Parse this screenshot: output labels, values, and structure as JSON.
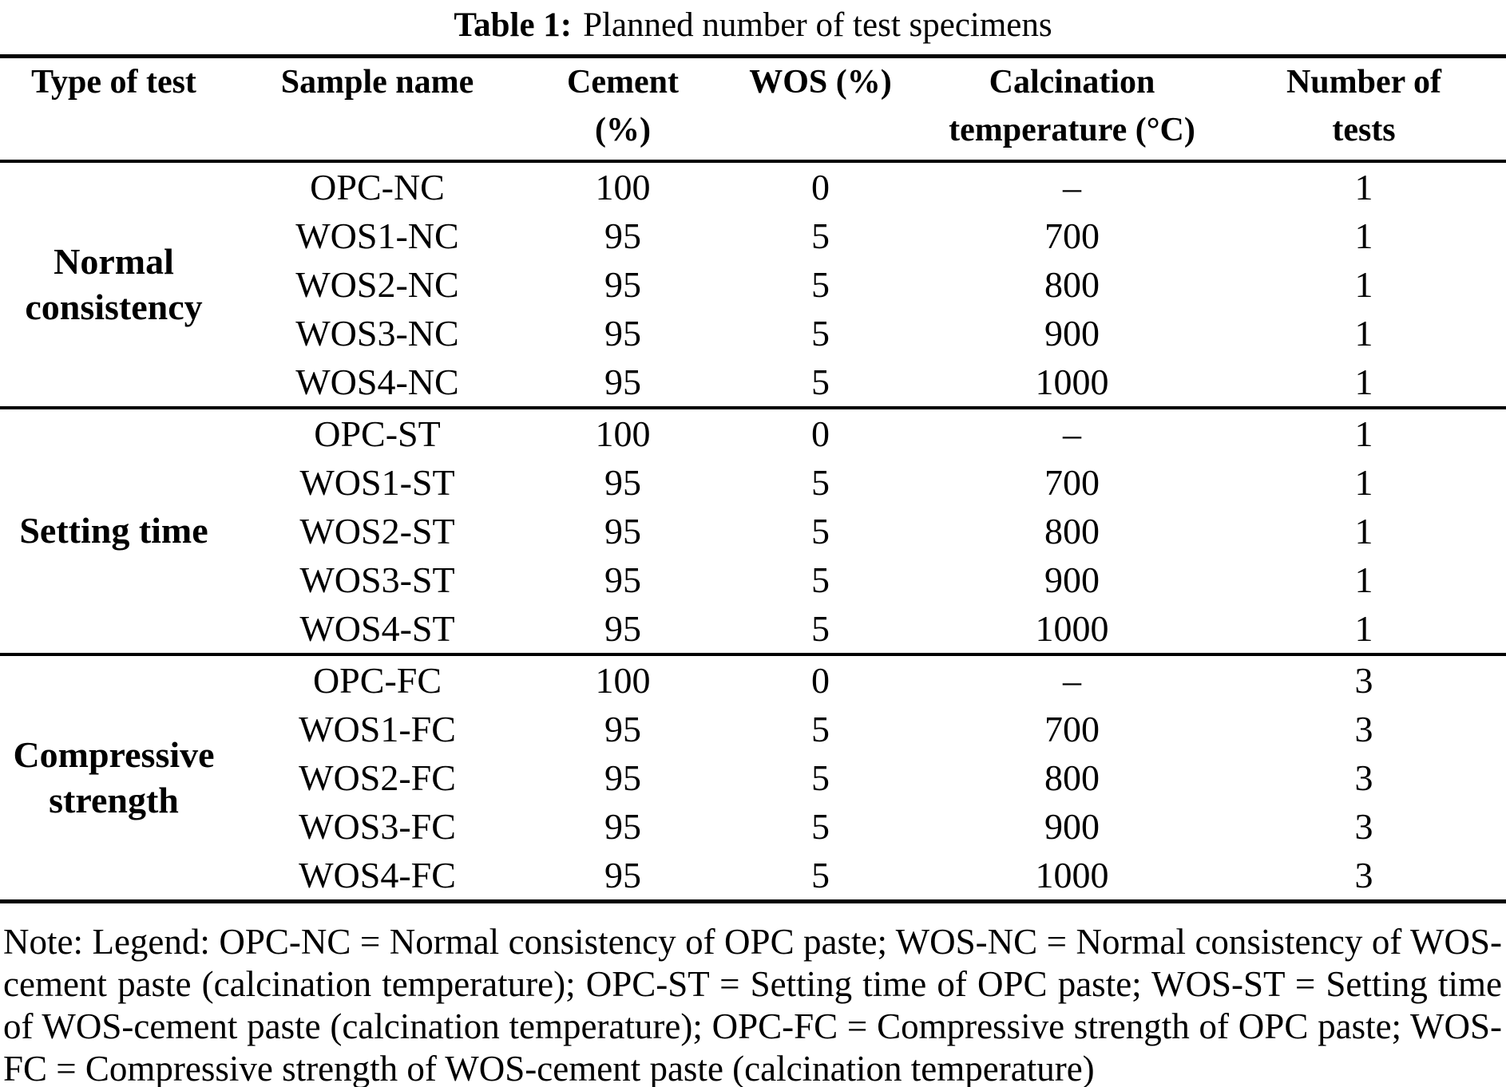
{
  "title": {
    "label": "Table 1:",
    "text": "Planned number of test specimens"
  },
  "colors": {
    "ink": "#000000",
    "background": "#ffffff"
  },
  "table": {
    "columns": [
      {
        "id": "type_of_test",
        "label": "Type of test",
        "lines": [
          "Type of test"
        ]
      },
      {
        "id": "sample_name",
        "label": "Sample name",
        "lines": [
          "Sample name"
        ]
      },
      {
        "id": "cement_pct",
        "label": "Cement (%)",
        "lines": [
          "Cement",
          "(%)"
        ]
      },
      {
        "id": "wos_pct",
        "label": "WOS (%)",
        "lines": [
          "WOS (%)"
        ]
      },
      {
        "id": "calcination_temp",
        "label": "Calcination temperature (°C)",
        "lines": [
          "Calcination",
          "temperature (°C)"
        ]
      },
      {
        "id": "number_of_tests",
        "label": "Number of tests",
        "lines": [
          "Number of",
          "tests"
        ]
      }
    ],
    "groups": [
      {
        "type_of_test": "Normal consistency",
        "rows": [
          {
            "sample_name": "OPC-NC",
            "cement_pct": "100",
            "wos_pct": "0",
            "calcination_temp": "–",
            "number_of_tests": "1"
          },
          {
            "sample_name": "WOS1-NC",
            "cement_pct": "95",
            "wos_pct": "5",
            "calcination_temp": "700",
            "number_of_tests": "1"
          },
          {
            "sample_name": "WOS2-NC",
            "cement_pct": "95",
            "wos_pct": "5",
            "calcination_temp": "800",
            "number_of_tests": "1"
          },
          {
            "sample_name": "WOS3-NC",
            "cement_pct": "95",
            "wos_pct": "5",
            "calcination_temp": "900",
            "number_of_tests": "1"
          },
          {
            "sample_name": "WOS4-NC",
            "cement_pct": "95",
            "wos_pct": "5",
            "calcination_temp": "1000",
            "number_of_tests": "1"
          }
        ]
      },
      {
        "type_of_test": "Setting time",
        "rows": [
          {
            "sample_name": "OPC-ST",
            "cement_pct": "100",
            "wos_pct": "0",
            "calcination_temp": "–",
            "number_of_tests": "1"
          },
          {
            "sample_name": "WOS1-ST",
            "cement_pct": "95",
            "wos_pct": "5",
            "calcination_temp": "700",
            "number_of_tests": "1"
          },
          {
            "sample_name": "WOS2-ST",
            "cement_pct": "95",
            "wos_pct": "5",
            "calcination_temp": "800",
            "number_of_tests": "1"
          },
          {
            "sample_name": "WOS3-ST",
            "cement_pct": "95",
            "wos_pct": "5",
            "calcination_temp": "900",
            "number_of_tests": "1"
          },
          {
            "sample_name": "WOS4-ST",
            "cement_pct": "95",
            "wos_pct": "5",
            "calcination_temp": "1000",
            "number_of_tests": "1"
          }
        ]
      },
      {
        "type_of_test": "Compressive strength",
        "rows": [
          {
            "sample_name": "OPC-FC",
            "cement_pct": "100",
            "wos_pct": "0",
            "calcination_temp": "–",
            "number_of_tests": "3"
          },
          {
            "sample_name": "WOS1-FC",
            "cement_pct": "95",
            "wos_pct": "5",
            "calcination_temp": "700",
            "number_of_tests": "3"
          },
          {
            "sample_name": "WOS2-FC",
            "cement_pct": "95",
            "wos_pct": "5",
            "calcination_temp": "800",
            "number_of_tests": "3"
          },
          {
            "sample_name": "WOS3-FC",
            "cement_pct": "95",
            "wos_pct": "5",
            "calcination_temp": "900",
            "number_of_tests": "3"
          },
          {
            "sample_name": "WOS4-FC",
            "cement_pct": "95",
            "wos_pct": "5",
            "calcination_temp": "1000",
            "number_of_tests": "3"
          }
        ]
      }
    ]
  },
  "note": "Note: Legend: OPC-NC = Normal consistency of OPC paste; WOS-NC = Normal consistency of WOS-cement paste (calcination temperature); OPC-ST = Setting time of OPC paste; WOS-ST = Setting time of WOS-cement paste (calcination temperature); OPC-FC = Compressive strength of OPC paste; WOS-FC = Compressive strength of WOS-cement paste (calcination temperature)"
}
